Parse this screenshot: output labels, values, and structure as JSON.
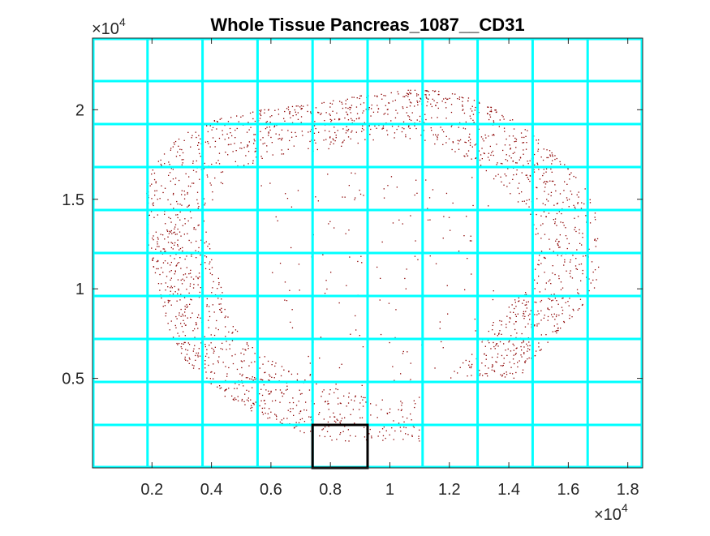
{
  "chart_data": {
    "type": "scatter",
    "title": "Whole Tissue Pancreas_1087__CD31",
    "xlabel": "",
    "ylabel": "",
    "xlim": [
      0,
      18500
    ],
    "ylim": [
      0,
      24000
    ],
    "x_ticks": [
      2000,
      4000,
      6000,
      8000,
      10000,
      12000,
      14000,
      16000,
      18000
    ],
    "x_tick_labels": [
      "0.2",
      "0.4",
      "0.6",
      "0.8",
      "1",
      "1.2",
      "1.4",
      "1.6",
      "1.8"
    ],
    "y_ticks": [
      5000,
      10000,
      15000,
      20000
    ],
    "y_tick_labels": [
      "0.5",
      "1",
      "1.5",
      "2"
    ],
    "x_exponent": {
      "base": "×10",
      "power": "4"
    },
    "y_exponent": {
      "base": "×10",
      "power": "4"
    },
    "grid": {
      "color": "#00ffff",
      "x_lines": [
        1850,
        3700,
        5550,
        7400,
        9250,
        11100,
        12950,
        14800,
        16650
      ],
      "y_lines": [
        2400,
        4800,
        7200,
        9600,
        12000,
        14400,
        16800,
        19200,
        21600
      ]
    },
    "highlight_box": {
      "x_range": [
        7400,
        9250
      ],
      "y_range": [
        0,
        2400
      ],
      "color": "#000000"
    },
    "point_color": "#8b0000",
    "tissue_region": {
      "center_x": 9300,
      "center_y": 11500,
      "radius_x": 7600,
      "radius_y": 10000,
      "ring_width": 2200,
      "missing_notch": {
        "x_range": [
          11000,
          15000
        ],
        "y_range": [
          1500,
          5000
        ]
      },
      "approx_point_count": 2200
    },
    "legend": "none"
  }
}
